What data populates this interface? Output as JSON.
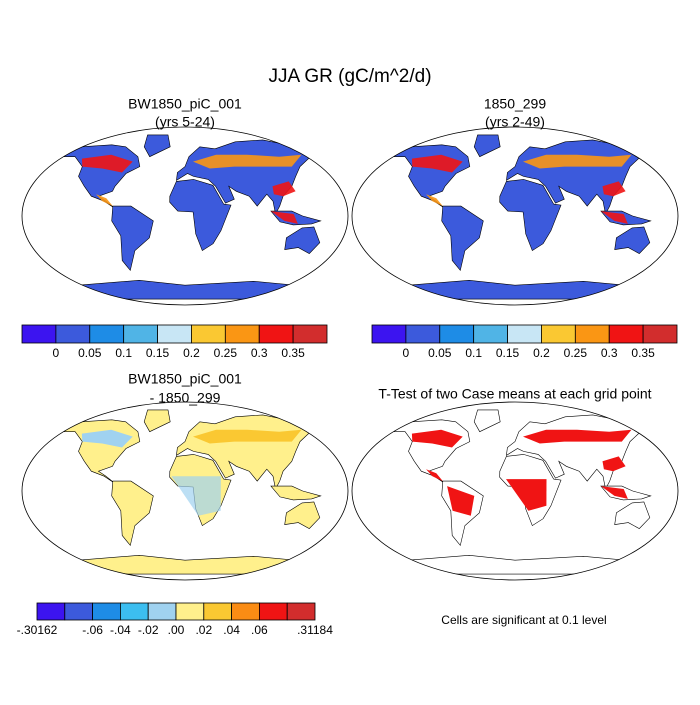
{
  "title": "JJA GR (gC/m^2/d)",
  "panels": [
    {
      "title": [
        "BW1850_piC_001",
        "(yrs 5-24)"
      ]
    },
    {
      "title": [
        "1850_299",
        "(yrs 2-49)"
      ]
    },
    {
      "title": [
        "BW1850_piC_001",
        "- 1850_299"
      ]
    },
    {
      "title": [
        "T-Test of two Case means at each grid point"
      ]
    }
  ],
  "colorbars": [
    {
      "colors": [
        "#3c14f0",
        "#3c5adc",
        "#1e8ce6",
        "#50b4e6",
        "#c8e6f5",
        "#fac832",
        "#fa9614",
        "#f01414",
        "#d22d2d"
      ],
      "labels": [
        "0",
        "0.05",
        "0.1",
        "0.15",
        "0.2",
        "0.25",
        "0.3",
        "0.35"
      ]
    },
    {
      "colors": [
        "#3c14f0",
        "#3c5adc",
        "#1e8ce6",
        "#50b4e6",
        "#c8e6f5",
        "#fac832",
        "#fa9614",
        "#f01414",
        "#d22d2d"
      ],
      "labels": [
        "0",
        "0.05",
        "0.1",
        "0.15",
        "0.2",
        "0.25",
        "0.3",
        "0.35"
      ]
    },
    {
      "colors": [
        "#3c14f0",
        "#3c5adc",
        "#1e8ce6",
        "#3cbef0",
        "#a0d2f0",
        "#fff08c",
        "#fac832",
        "#fa8c14",
        "#f01414",
        "#d22d2d"
      ],
      "labels": [
        "-.30162",
        "-.06",
        "-.04",
        "-.02",
        ".00",
        ".02",
        ".04",
        ".06",
        ".31184"
      ]
    }
  ],
  "note": "Cells are significant at 0.1 level"
}
